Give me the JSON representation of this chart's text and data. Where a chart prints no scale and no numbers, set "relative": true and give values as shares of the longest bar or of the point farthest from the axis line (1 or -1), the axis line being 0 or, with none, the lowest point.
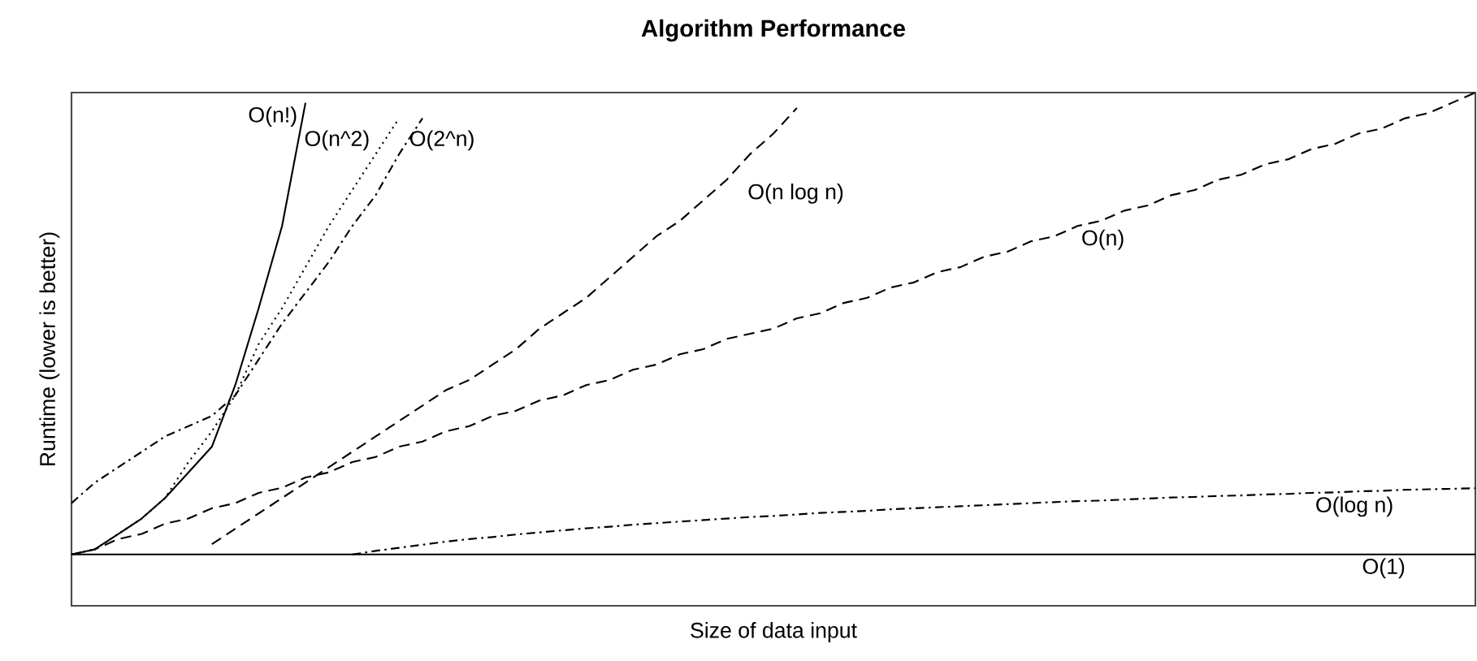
{
  "chart_data": {
    "type": "line",
    "title": "Algorithm Performance",
    "xlabel": "Size of data input",
    "ylabel": "Runtime (lower is better)",
    "relative": true,
    "legend": false,
    "grid": false,
    "marker": "none",
    "categories": [
      null,
      null,
      null,
      null,
      null,
      null,
      null,
      null,
      null,
      null,
      null,
      null,
      null,
      null,
      null,
      null,
      null,
      null,
      null,
      null,
      null,
      null,
      null,
      null,
      null,
      null,
      null,
      null,
      null,
      null,
      null,
      null,
      null,
      null,
      null,
      null,
      null,
      null,
      null,
      null,
      null,
      null,
      null,
      null,
      null,
      null,
      null,
      null,
      null,
      null,
      null,
      null,
      null,
      null,
      null,
      null,
      null,
      null,
      null,
      null,
      null
    ],
    "series": [
      {
        "name": "O(n!)",
        "color": "#000000",
        "line_style": "solid",
        "values": [
          0.1,
          0.11,
          0.14,
          0.17,
          0.21,
          0.26,
          0.31,
          0.43,
          0.58,
          0.74,
          0.98,
          null,
          null,
          null,
          null,
          null,
          null,
          null,
          null,
          null,
          null,
          null,
          null,
          null,
          null,
          null,
          null,
          null,
          null,
          null,
          null,
          null,
          null,
          null,
          null,
          null,
          null,
          null,
          null,
          null,
          null,
          null,
          null,
          null,
          null,
          null,
          null,
          null,
          null,
          null,
          null,
          null,
          null,
          null,
          null,
          null,
          null,
          null,
          null,
          null,
          null
        ]
      },
      {
        "name": "O(n^2)",
        "color": "#000000",
        "line_style": "dotted",
        "values": [
          0.1,
          0.11,
          0.14,
          0.17,
          0.21,
          0.28,
          0.34,
          0.41,
          0.51,
          0.58,
          0.66,
          0.74,
          0.81,
          0.88,
          0.95,
          null,
          null,
          null,
          null,
          null,
          null,
          null,
          null,
          null,
          null,
          null,
          null,
          null,
          null,
          null,
          null,
          null,
          null,
          null,
          null,
          null,
          null,
          null,
          null,
          null,
          null,
          null,
          null,
          null,
          null,
          null,
          null,
          null,
          null,
          null,
          null,
          null,
          null,
          null,
          null,
          null,
          null,
          null,
          null,
          null,
          null
        ]
      },
      {
        "name": "O(2^n)",
        "color": "#000000",
        "line_style": "dashdot",
        "values": [
          0.2,
          0.24,
          0.27,
          0.3,
          0.33,
          0.35,
          0.37,
          0.41,
          0.48,
          0.55,
          0.61,
          0.67,
          0.74,
          0.8,
          0.88,
          0.95,
          null,
          null,
          null,
          null,
          null,
          null,
          null,
          null,
          null,
          null,
          null,
          null,
          null,
          null,
          null,
          null,
          null,
          null,
          null,
          null,
          null,
          null,
          null,
          null,
          null,
          null,
          null,
          null,
          null,
          null,
          null,
          null,
          null,
          null,
          null,
          null,
          null,
          null,
          null,
          null,
          null,
          null,
          null,
          null,
          null
        ]
      },
      {
        "name": "O(n log n)",
        "color": "#000000",
        "line_style": "dashed",
        "values": [
          null,
          null,
          null,
          null,
          null,
          null,
          0.12,
          0.15,
          0.18,
          0.21,
          0.24,
          0.27,
          0.3,
          0.33,
          0.36,
          0.39,
          0.42,
          0.44,
          0.47,
          0.5,
          0.54,
          0.57,
          0.6,
          0.64,
          0.68,
          0.72,
          0.75,
          0.79,
          0.83,
          0.88,
          0.92,
          0.97,
          null,
          null,
          null,
          null,
          null,
          null,
          null,
          null,
          null,
          null,
          null,
          null,
          null,
          null,
          null,
          null,
          null,
          null,
          null,
          null,
          null,
          null,
          null,
          null,
          null,
          null,
          null,
          null,
          null
        ]
      },
      {
        "name": "O(n)",
        "color": "#000000",
        "line_style": "dashed",
        "values": [
          0.1,
          0.11,
          0.13,
          0.14,
          0.16,
          0.17,
          0.19,
          0.2,
          0.22,
          0.23,
          0.25,
          0.26,
          0.28,
          0.29,
          0.31,
          0.32,
          0.34,
          0.35,
          0.37,
          0.38,
          0.4,
          0.41,
          0.43,
          0.44,
          0.46,
          0.47,
          0.49,
          0.5,
          0.52,
          0.53,
          0.54,
          0.56,
          0.57,
          0.59,
          0.6,
          0.62,
          0.63,
          0.65,
          0.66,
          0.68,
          0.69,
          0.71,
          0.72,
          0.74,
          0.75,
          0.77,
          0.78,
          0.8,
          0.81,
          0.83,
          0.84,
          0.86,
          0.87,
          0.89,
          0.9,
          0.92,
          0.93,
          0.95,
          0.96,
          0.98,
          1.0
        ]
      },
      {
        "name": "O(log n)",
        "color": "#000000",
        "line_style": "dashdot",
        "values": [
          null,
          null,
          null,
          null,
          null,
          null,
          null,
          null,
          null,
          null,
          null,
          null,
          0.1,
          0.107,
          0.113,
          0.119,
          0.125,
          0.13,
          0.134,
          0.139,
          0.143,
          0.147,
          0.151,
          0.154,
          0.158,
          0.161,
          0.164,
          0.167,
          0.17,
          0.173,
          0.175,
          0.178,
          0.181,
          0.183,
          0.185,
          0.188,
          0.19,
          0.192,
          0.194,
          0.196,
          0.198,
          0.2,
          0.202,
          0.204,
          0.205,
          0.207,
          0.209,
          0.211,
          0.212,
          0.214,
          0.215,
          0.217,
          0.218,
          0.22,
          0.221,
          0.223,
          0.224,
          0.226,
          0.227,
          0.228,
          0.229
        ]
      },
      {
        "name": "O(1)",
        "color": "#000000",
        "line_style": "solid",
        "values": [
          0.1,
          0.1,
          0.1,
          0.1,
          0.1,
          0.1,
          0.1,
          0.1,
          0.1,
          0.1,
          0.1,
          0.1,
          0.1,
          0.1,
          0.1,
          0.1,
          0.1,
          0.1,
          0.1,
          0.1,
          0.1,
          0.1,
          0.1,
          0.1,
          0.1,
          0.1,
          0.1,
          0.1,
          0.1,
          0.1,
          0.1,
          0.1,
          0.1,
          0.1,
          0.1,
          0.1,
          0.1,
          0.1,
          0.1,
          0.1,
          0.1,
          0.1,
          0.1,
          0.1,
          0.1,
          0.1,
          0.1,
          0.1,
          0.1,
          0.1,
          0.1,
          0.1,
          0.1,
          0.1,
          0.1,
          0.1,
          0.1,
          0.1,
          0.1,
          0.1,
          0.1
        ]
      }
    ]
  }
}
